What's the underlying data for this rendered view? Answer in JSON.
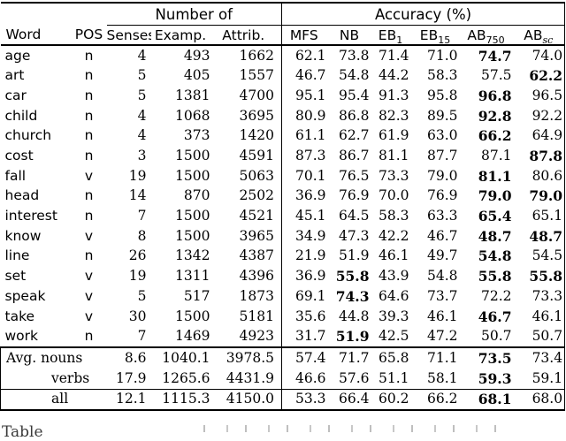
{
  "colors": {
    "text": "#000000",
    "background": "#ffffff"
  },
  "caption": {
    "fragment": "Table"
  },
  "table": {
    "group_headers": {
      "number_of": "Number of",
      "accuracy": "Accuracy (%)"
    },
    "columns": [
      {
        "key": "word",
        "label": "Word"
      },
      {
        "key": "pos",
        "label": "POS"
      },
      {
        "key": "senses",
        "label": "Senses"
      },
      {
        "key": "examp",
        "label": "Examp."
      },
      {
        "key": "attrib",
        "label": "Attrib."
      },
      {
        "key": "mfs",
        "label": "MFS"
      },
      {
        "key": "nb",
        "label": "NB"
      },
      {
        "key": "eb1",
        "label": "EB",
        "sub": "1"
      },
      {
        "key": "eb15",
        "label": "EB",
        "sub": "15"
      },
      {
        "key": "ab750",
        "label": "AB",
        "sub": "750"
      },
      {
        "key": "absc",
        "label": "AB",
        "sub": "sc",
        "sub_style": "italic"
      }
    ],
    "rows": [
      {
        "word": "age",
        "pos": "n",
        "senses": "4",
        "examp": "493",
        "attrib": "1662",
        "acc": [
          "62.1",
          "73.8",
          "71.4",
          "71.0",
          "74.7",
          "74.0"
        ],
        "bold": [
          4
        ]
      },
      {
        "word": "art",
        "pos": "n",
        "senses": "5",
        "examp": "405",
        "attrib": "1557",
        "acc": [
          "46.7",
          "54.8",
          "44.2",
          "58.3",
          "57.5",
          "62.2"
        ],
        "bold": [
          5
        ]
      },
      {
        "word": "car",
        "pos": "n",
        "senses": "5",
        "examp": "1381",
        "attrib": "4700",
        "acc": [
          "95.1",
          "95.4",
          "91.3",
          "95.8",
          "96.8",
          "96.5"
        ],
        "bold": [
          4
        ]
      },
      {
        "word": "child",
        "pos": "n",
        "senses": "4",
        "examp": "1068",
        "attrib": "3695",
        "acc": [
          "80.9",
          "86.8",
          "82.3",
          "89.5",
          "92.8",
          "92.2"
        ],
        "bold": [
          4
        ]
      },
      {
        "word": "church",
        "pos": "n",
        "senses": "4",
        "examp": "373",
        "attrib": "1420",
        "acc": [
          "61.1",
          "62.7",
          "61.9",
          "63.0",
          "66.2",
          "64.9"
        ],
        "bold": [
          4
        ]
      },
      {
        "word": "cost",
        "pos": "n",
        "senses": "3",
        "examp": "1500",
        "attrib": "4591",
        "acc": [
          "87.3",
          "86.7",
          "81.1",
          "87.7",
          "87.1",
          "87.8"
        ],
        "bold": [
          5
        ]
      },
      {
        "word": "fall",
        "pos": "v",
        "senses": "19",
        "examp": "1500",
        "attrib": "5063",
        "acc": [
          "70.1",
          "76.5",
          "73.3",
          "79.0",
          "81.1",
          "80.6"
        ],
        "bold": [
          4
        ]
      },
      {
        "word": "head",
        "pos": "n",
        "senses": "14",
        "examp": "870",
        "attrib": "2502",
        "acc": [
          "36.9",
          "76.9",
          "70.0",
          "76.9",
          "79.0",
          "79.0"
        ],
        "bold": [
          4,
          5
        ]
      },
      {
        "word": "interest",
        "pos": "n",
        "senses": "7",
        "examp": "1500",
        "attrib": "4521",
        "acc": [
          "45.1",
          "64.5",
          "58.3",
          "63.3",
          "65.4",
          "65.1"
        ],
        "bold": [
          4
        ]
      },
      {
        "word": "know",
        "pos": "v",
        "senses": "8",
        "examp": "1500",
        "attrib": "3965",
        "acc": [
          "34.9",
          "47.3",
          "42.2",
          "46.7",
          "48.7",
          "48.7"
        ],
        "bold": [
          4,
          5
        ]
      },
      {
        "word": "line",
        "pos": "n",
        "senses": "26",
        "examp": "1342",
        "attrib": "4387",
        "acc": [
          "21.9",
          "51.9",
          "46.1",
          "49.7",
          "54.8",
          "54.5"
        ],
        "bold": [
          4
        ]
      },
      {
        "word": "set",
        "pos": "v",
        "senses": "19",
        "examp": "1311",
        "attrib": "4396",
        "acc": [
          "36.9",
          "55.8",
          "43.9",
          "54.8",
          "55.8",
          "55.8"
        ],
        "bold": [
          1,
          4,
          5
        ]
      },
      {
        "word": "speak",
        "pos": "v",
        "senses": "5",
        "examp": "517",
        "attrib": "1873",
        "acc": [
          "69.1",
          "74.3",
          "64.6",
          "73.7",
          "72.2",
          "73.3"
        ],
        "bold": [
          1
        ]
      },
      {
        "word": "take",
        "pos": "v",
        "senses": "30",
        "examp": "1500",
        "attrib": "5181",
        "acc": [
          "35.6",
          "44.8",
          "39.3",
          "46.1",
          "46.7",
          "46.1"
        ],
        "bold": [
          4
        ]
      },
      {
        "word": "work",
        "pos": "n",
        "senses": "7",
        "examp": "1469",
        "attrib": "4923",
        "acc": [
          "31.7",
          "51.9",
          "42.5",
          "47.2",
          "50.7",
          "50.7"
        ],
        "bold": [
          1
        ]
      }
    ],
    "summary": [
      {
        "label": "Avg. nouns",
        "indent": false,
        "section": "avg-first",
        "senses": "8.6",
        "examp": "1040.1",
        "attrib": "3978.5",
        "acc": [
          "57.4",
          "71.7",
          "65.8",
          "71.1",
          "73.5",
          "73.4"
        ],
        "bold": [
          4
        ]
      },
      {
        "label": "verbs",
        "indent": true,
        "section": "avg",
        "senses": "17.9",
        "examp": "1265.6",
        "attrib": "4431.9",
        "acc": [
          "46.6",
          "57.6",
          "51.1",
          "58.1",
          "59.3",
          "59.1"
        ],
        "bold": [
          4
        ]
      },
      {
        "label": "all",
        "indent": true,
        "section": "all",
        "senses": "12.1",
        "examp": "1115.3",
        "attrib": "4150.0",
        "acc": [
          "53.3",
          "66.4",
          "60.2",
          "66.2",
          "68.1",
          "68.0"
        ],
        "bold": [
          4
        ]
      }
    ]
  }
}
